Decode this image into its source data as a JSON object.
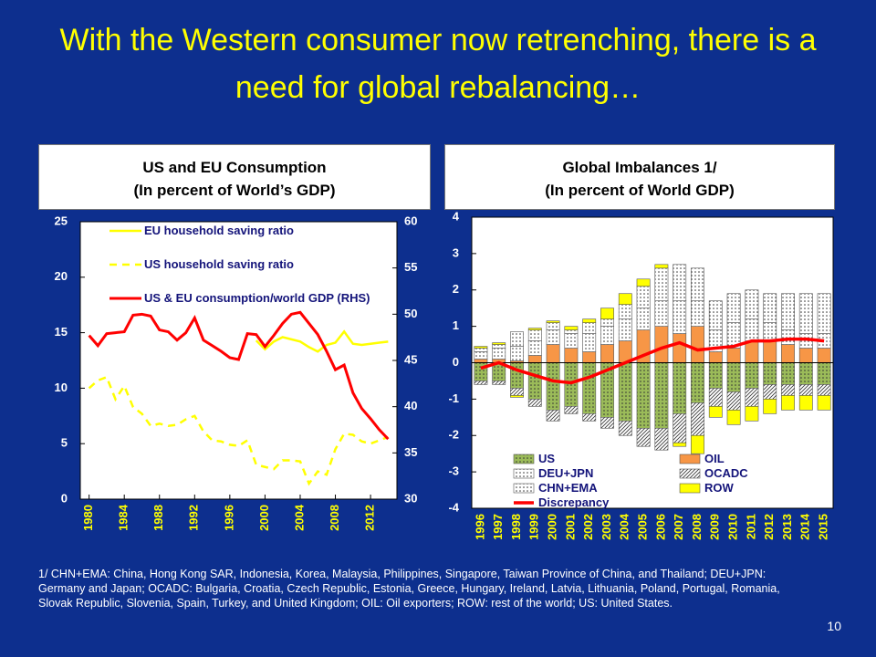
{
  "title": "With the Western consumer now retrenching, there is a need for global rebalancing…",
  "chart_data": [
    {
      "type": "line",
      "title": "US and EU Consumption",
      "subtitle": "(In percent of World’s GDP)",
      "x": [
        1980,
        1981,
        1982,
        1983,
        1984,
        1985,
        1986,
        1987,
        1988,
        1989,
        1990,
        1991,
        1992,
        1993,
        1994,
        1995,
        1996,
        1997,
        1998,
        1999,
        2000,
        2001,
        2002,
        2003,
        2004,
        2005,
        2006,
        2007,
        2008,
        2009,
        2010,
        2011,
        2012,
        2013,
        2014
      ],
      "xlim": [
        1979,
        2015
      ],
      "xticks": [
        1980,
        1984,
        1988,
        1992,
        1996,
        2000,
        2004,
        2008,
        2012
      ],
      "ylim": [
        0,
        25
      ],
      "yticks": [
        0,
        5,
        10,
        15,
        20,
        25
      ],
      "y2lim": [
        30,
        60
      ],
      "y2ticks": [
        30,
        35,
        40,
        45,
        50,
        55,
        60
      ],
      "series": [
        {
          "name": "EU household saving ratio",
          "color": "#ffff00",
          "line_style": "solid",
          "values": [
            null,
            null,
            null,
            null,
            null,
            null,
            null,
            null,
            null,
            null,
            null,
            null,
            null,
            null,
            null,
            null,
            null,
            null,
            null,
            14.3,
            13.5,
            14.2,
            14.6,
            14.4,
            14.2,
            13.7,
            13.3,
            13.9,
            14.1,
            15.1,
            14.0,
            13.9,
            14.0,
            14.1,
            14.2
          ]
        },
        {
          "name": "US household saving ratio",
          "color": "#ffff00",
          "line_style": "dashed",
          "values": [
            10.0,
            10.7,
            11.0,
            9.0,
            10.2,
            8.3,
            7.7,
            6.6,
            6.8,
            6.6,
            6.7,
            7.2,
            7.5,
            6.1,
            5.3,
            5.2,
            4.9,
            4.8,
            5.3,
            3.1,
            2.9,
            2.7,
            3.5,
            3.5,
            3.4,
            1.4,
            2.5,
            2.2,
            4.5,
            5.9,
            5.8,
            5.2,
            5.0,
            5.3,
            5.6
          ]
        },
        {
          "name": "US & EU consumption/world GDP (RHS)",
          "color": "#ff0000",
          "line_style": "solid",
          "axis": "y2",
          "values": [
            47.7,
            46.6,
            47.9,
            48.0,
            48.1,
            49.9,
            50.0,
            49.8,
            48.3,
            48.1,
            47.2,
            48.0,
            49.6,
            47.2,
            46.6,
            46.0,
            45.3,
            45.1,
            47.9,
            47.8,
            46.5,
            47.7,
            49.0,
            50.0,
            50.2,
            49.0,
            47.8,
            46.0,
            44.0,
            44.5,
            41.5,
            39.8,
            38.7,
            37.5,
            36.5
          ]
        }
      ]
    },
    {
      "type": "bar",
      "stacked": true,
      "title": "Global Imbalances 1/",
      "subtitle": "(In percent of World GDP)",
      "categories": [
        "1996",
        "1997",
        "1998",
        "1999",
        "2000",
        "2001",
        "2002",
        "2003",
        "2004",
        "2005",
        "2006",
        "2007",
        "2008",
        "2009",
        "2010",
        "2011",
        "2012",
        "2013",
        "2014",
        "2015"
      ],
      "ylim": [
        -4,
        4
      ],
      "yticks": [
        -4,
        -3,
        -2,
        -1,
        0,
        1,
        2,
        3,
        4
      ],
      "series": [
        {
          "name": "US",
          "color": "#9bbb59",
          "pattern": "dots",
          "values": [
            -0.5,
            -0.5,
            -0.7,
            -1.0,
            -1.3,
            -1.2,
            -1.4,
            -1.5,
            -1.6,
            -1.8,
            -1.8,
            -1.4,
            -1.1,
            -0.7,
            -0.8,
            -0.7,
            -0.6,
            -0.6,
            -0.6,
            -0.6
          ]
        },
        {
          "name": "OIL",
          "color": "#f79646",
          "pattern": "none",
          "values": [
            0.1,
            0.1,
            0.05,
            0.2,
            0.5,
            0.4,
            0.3,
            0.5,
            0.6,
            0.9,
            1.0,
            0.8,
            1.0,
            0.3,
            0.4,
            0.6,
            0.6,
            0.5,
            0.4,
            0.4
          ]
        },
        {
          "name": "DEU+JPN",
          "color": "#ffffff",
          "pattern": "dots",
          "values": [
            0.2,
            0.3,
            0.4,
            0.4,
            0.4,
            0.4,
            0.5,
            0.5,
            0.6,
            0.6,
            0.7,
            0.9,
            0.7,
            0.6,
            0.7,
            0.6,
            0.5,
            0.4,
            0.4,
            0.4
          ]
        },
        {
          "name": "OCADC",
          "color": "#ffffff",
          "pattern": "hatch",
          "values": [
            -0.1,
            -0.1,
            -0.2,
            -0.2,
            -0.3,
            -0.2,
            -0.2,
            -0.3,
            -0.4,
            -0.5,
            -0.6,
            -0.8,
            -0.9,
            -0.5,
            -0.5,
            -0.5,
            -0.4,
            -0.3,
            -0.3,
            -0.3
          ]
        },
        {
          "name": "CHN+EMA",
          "color": "#ffffff",
          "pattern": "dots",
          "values": [
            0.1,
            0.1,
            0.4,
            0.3,
            0.2,
            0.1,
            0.3,
            0.2,
            0.4,
            0.6,
            0.9,
            1.0,
            0.9,
            0.8,
            0.8,
            0.8,
            0.8,
            1.0,
            1.1,
            1.1
          ]
        },
        {
          "name": "ROW",
          "color": "#ffff00",
          "pattern": "none",
          "values": [
            0.05,
            0.05,
            -0.05,
            0.05,
            0.05,
            0.1,
            0.1,
            0.3,
            0.3,
            0.2,
            0.1,
            -0.1,
            -0.5,
            -0.3,
            -0.4,
            -0.4,
            -0.4,
            -0.4,
            -0.4,
            -0.4
          ]
        },
        {
          "name": "Discrepancy",
          "color": "#ff0000",
          "type": "line",
          "values": [
            -0.15,
            0.0,
            -0.2,
            -0.35,
            -0.5,
            -0.55,
            -0.4,
            -0.2,
            0.0,
            0.2,
            0.4,
            0.55,
            0.35,
            0.4,
            0.45,
            0.6,
            0.6,
            0.65,
            0.65,
            0.6
          ]
        }
      ]
    }
  ],
  "footnote": "1/ CHN+EMA: China, Hong Kong SAR, Indonesia, Korea, Malaysia, Philippines, Singapore, Taiwan Province of China, and Thailand; DEU+JPN: Germany and Japan; OCADC: Bulgaria, Croatia, Czech Republic, Estonia, Greece, Hungary, Ireland, Latvia, Lithuania, Poland, Portugal, Romania, Slovak Republic, Slovenia, Spain, Turkey, and United Kingdom; OIL: Oil exporters; ROW: rest of the world; US: United States.",
  "page_number": "10"
}
